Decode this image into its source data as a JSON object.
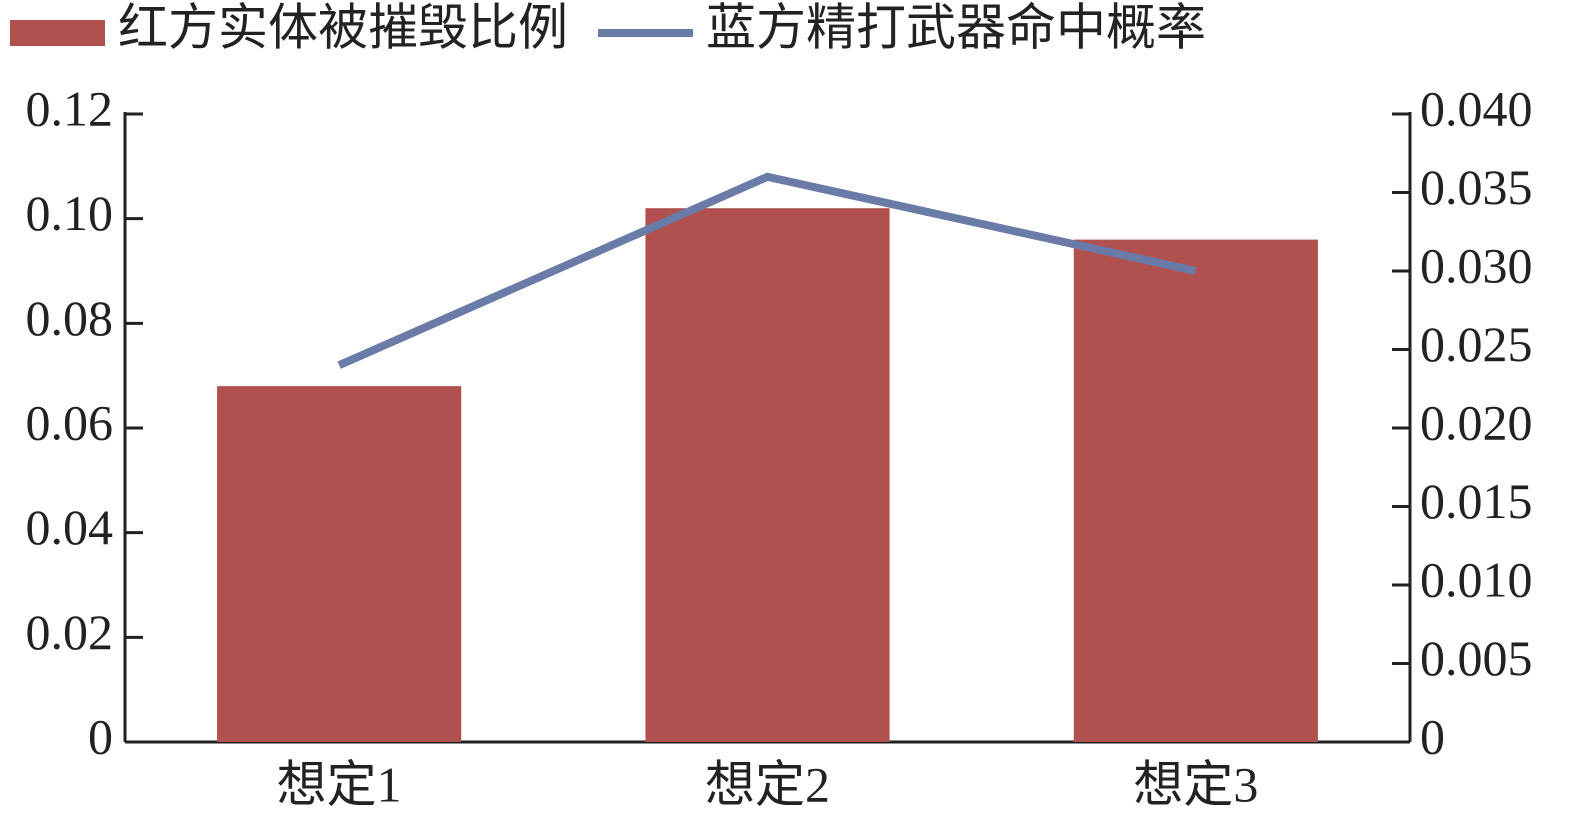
{
  "chart_data": {
    "type": "bar",
    "categories": [
      "想定1",
      "想定2",
      "想定3"
    ],
    "series": [
      {
        "name": "红方实体被摧毁比例",
        "type": "bar",
        "color": "#b05150",
        "values": [
          0.068,
          0.102,
          0.096
        ]
      },
      {
        "name": "蓝方精打武器命中概率",
        "type": "line",
        "axis": "y2",
        "color": "#6a7ba8",
        "values": [
          0.024,
          0.036,
          0.03
        ]
      }
    ],
    "ylim": [
      0,
      0.12
    ],
    "yticks": [
      0,
      0.02,
      0.04,
      0.06,
      0.08,
      {
        "value": 0.1,
        "label": "0.10"
      },
      0.12
    ],
    "y2lim": [
      0,
      0.04
    ],
    "y2ticks": [
      0,
      0.005,
      {
        "value": 0.01,
        "label": "0.010"
      },
      0.015,
      {
        "value": 0.02,
        "label": "0.020"
      },
      0.025,
      {
        "value": 0.03,
        "label": "0.030"
      },
      0.035,
      {
        "value": 0.04,
        "label": "0.040"
      }
    ],
    "legend": "top",
    "grid": false
  }
}
